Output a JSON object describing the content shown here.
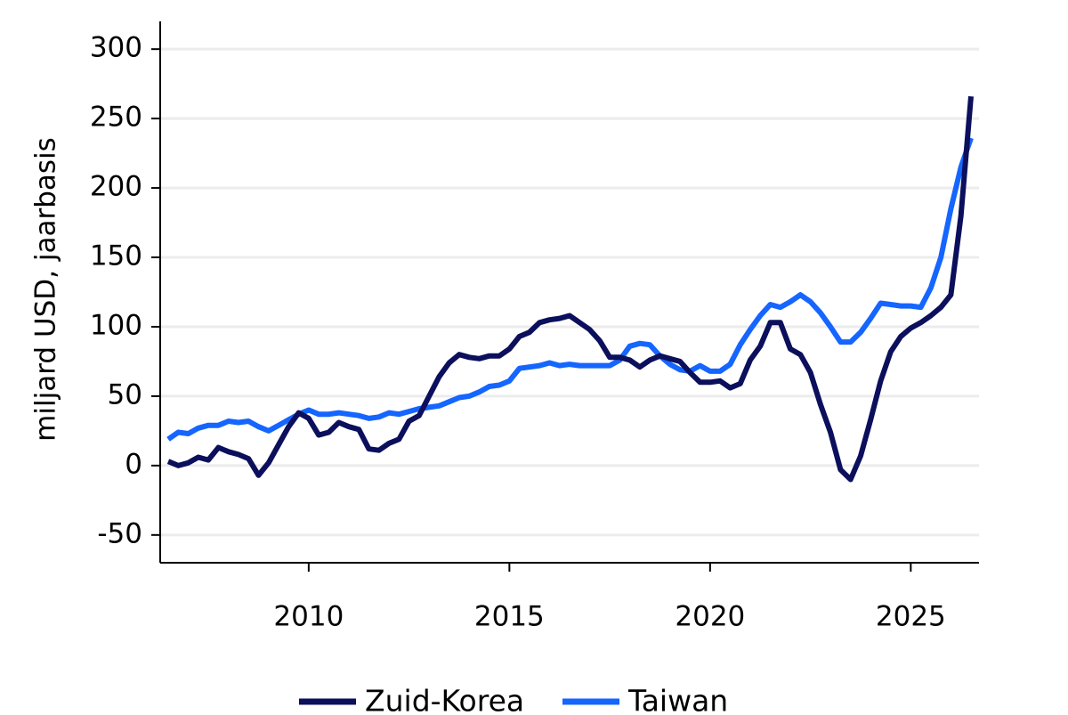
{
  "chart_data": {
    "type": "line",
    "title": "",
    "xlabel": "",
    "ylabel": "miljard USD, jaarbasis",
    "xlim": [
      2006.3,
      2026.7
    ],
    "ylim": [
      -70,
      320
    ],
    "x_ticks": [
      2010,
      2015,
      2020,
      2025
    ],
    "y_ticks": [
      -50,
      0,
      50,
      100,
      150,
      200,
      250,
      300
    ],
    "grid": "horizontal",
    "legend_position": "bottom-center",
    "series": [
      {
        "name": "Zuid-Korea",
        "color": "#0b0f5c",
        "points": [
          [
            2006.5,
            3
          ],
          [
            2006.75,
            0
          ],
          [
            2007.0,
            2
          ],
          [
            2007.25,
            6
          ],
          [
            2007.5,
            4
          ],
          [
            2007.75,
            13
          ],
          [
            2008.0,
            10
          ],
          [
            2008.25,
            8
          ],
          [
            2008.5,
            5
          ],
          [
            2008.75,
            -7
          ],
          [
            2009.0,
            2
          ],
          [
            2009.25,
            15
          ],
          [
            2009.5,
            28
          ],
          [
            2009.75,
            38
          ],
          [
            2010.0,
            34
          ],
          [
            2010.25,
            22
          ],
          [
            2010.5,
            24
          ],
          [
            2010.75,
            31
          ],
          [
            2011.0,
            28
          ],
          [
            2011.25,
            26
          ],
          [
            2011.5,
            12
          ],
          [
            2011.75,
            11
          ],
          [
            2012.0,
            16
          ],
          [
            2012.25,
            19
          ],
          [
            2012.5,
            32
          ],
          [
            2012.75,
            36
          ],
          [
            2013.0,
            50
          ],
          [
            2013.25,
            64
          ],
          [
            2013.5,
            74
          ],
          [
            2013.75,
            80
          ],
          [
            2014.0,
            78
          ],
          [
            2014.25,
            77
          ],
          [
            2014.5,
            79
          ],
          [
            2014.75,
            79
          ],
          [
            2015.0,
            84
          ],
          [
            2015.25,
            93
          ],
          [
            2015.5,
            96
          ],
          [
            2015.75,
            103
          ],
          [
            2016.0,
            105
          ],
          [
            2016.25,
            106
          ],
          [
            2016.5,
            108
          ],
          [
            2016.75,
            103
          ],
          [
            2017.0,
            98
          ],
          [
            2017.25,
            90
          ],
          [
            2017.5,
            78
          ],
          [
            2017.75,
            78
          ],
          [
            2018.0,
            76
          ],
          [
            2018.25,
            71
          ],
          [
            2018.5,
            76
          ],
          [
            2018.75,
            79
          ],
          [
            2019.0,
            77
          ],
          [
            2019.25,
            75
          ],
          [
            2019.5,
            67
          ],
          [
            2019.75,
            60
          ],
          [
            2020.0,
            60
          ],
          [
            2020.25,
            61
          ],
          [
            2020.5,
            56
          ],
          [
            2020.75,
            59
          ],
          [
            2021.0,
            76
          ],
          [
            2021.25,
            86
          ],
          [
            2021.5,
            103
          ],
          [
            2021.75,
            103
          ],
          [
            2022.0,
            84
          ],
          [
            2022.25,
            80
          ],
          [
            2022.5,
            67
          ],
          [
            2022.75,
            44
          ],
          [
            2023.0,
            24
          ],
          [
            2023.25,
            -3
          ],
          [
            2023.5,
            -10
          ],
          [
            2023.75,
            7
          ],
          [
            2024.0,
            33
          ],
          [
            2024.25,
            61
          ],
          [
            2024.5,
            82
          ],
          [
            2024.75,
            93
          ],
          [
            2025.0,
            99
          ],
          [
            2025.25,
            103
          ],
          [
            2025.5,
            108
          ],
          [
            2025.75,
            114
          ],
          [
            2026.0,
            123
          ],
          [
            2026.25,
            180
          ],
          [
            2026.5,
            266
          ]
        ]
      },
      {
        "name": "Taiwan",
        "color": "#1565ff",
        "points": [
          [
            2006.5,
            19
          ],
          [
            2006.75,
            24
          ],
          [
            2007.0,
            23
          ],
          [
            2007.25,
            27
          ],
          [
            2007.5,
            29
          ],
          [
            2007.75,
            29
          ],
          [
            2008.0,
            32
          ],
          [
            2008.25,
            31
          ],
          [
            2008.5,
            32
          ],
          [
            2008.75,
            28
          ],
          [
            2009.0,
            25
          ],
          [
            2009.25,
            29
          ],
          [
            2009.5,
            33
          ],
          [
            2009.75,
            37
          ],
          [
            2010.0,
            40
          ],
          [
            2010.25,
            37
          ],
          [
            2010.5,
            37
          ],
          [
            2010.75,
            38
          ],
          [
            2011.0,
            37
          ],
          [
            2011.25,
            36
          ],
          [
            2011.5,
            34
          ],
          [
            2011.75,
            35
          ],
          [
            2012.0,
            38
          ],
          [
            2012.25,
            37
          ],
          [
            2012.5,
            39
          ],
          [
            2012.75,
            41
          ],
          [
            2013.0,
            42
          ],
          [
            2013.25,
            43
          ],
          [
            2013.5,
            46
          ],
          [
            2013.75,
            49
          ],
          [
            2014.0,
            50
          ],
          [
            2014.25,
            53
          ],
          [
            2014.5,
            57
          ],
          [
            2014.75,
            58
          ],
          [
            2015.0,
            61
          ],
          [
            2015.25,
            70
          ],
          [
            2015.5,
            71
          ],
          [
            2015.75,
            72
          ],
          [
            2016.0,
            74
          ],
          [
            2016.25,
            72
          ],
          [
            2016.5,
            73
          ],
          [
            2016.75,
            72
          ],
          [
            2017.0,
            72
          ],
          [
            2017.25,
            72
          ],
          [
            2017.5,
            72
          ],
          [
            2017.75,
            76
          ],
          [
            2018.0,
            86
          ],
          [
            2018.25,
            88
          ],
          [
            2018.5,
            87
          ],
          [
            2018.75,
            79
          ],
          [
            2019.0,
            73
          ],
          [
            2019.25,
            69
          ],
          [
            2019.5,
            68
          ],
          [
            2019.75,
            72
          ],
          [
            2020.0,
            68
          ],
          [
            2020.25,
            68
          ],
          [
            2020.5,
            73
          ],
          [
            2020.75,
            87
          ],
          [
            2021.0,
            98
          ],
          [
            2021.25,
            108
          ],
          [
            2021.5,
            116
          ],
          [
            2021.75,
            114
          ],
          [
            2022.0,
            118
          ],
          [
            2022.25,
            123
          ],
          [
            2022.5,
            118
          ],
          [
            2022.75,
            110
          ],
          [
            2023.0,
            100
          ],
          [
            2023.25,
            89
          ],
          [
            2023.5,
            89
          ],
          [
            2023.75,
            96
          ],
          [
            2024.0,
            106
          ],
          [
            2024.25,
            117
          ],
          [
            2024.5,
            116
          ],
          [
            2024.75,
            115
          ],
          [
            2025.0,
            115
          ],
          [
            2025.25,
            114
          ],
          [
            2025.5,
            128
          ],
          [
            2025.75,
            150
          ],
          [
            2026.0,
            185
          ],
          [
            2026.25,
            215
          ],
          [
            2026.5,
            236
          ]
        ]
      }
    ]
  }
}
